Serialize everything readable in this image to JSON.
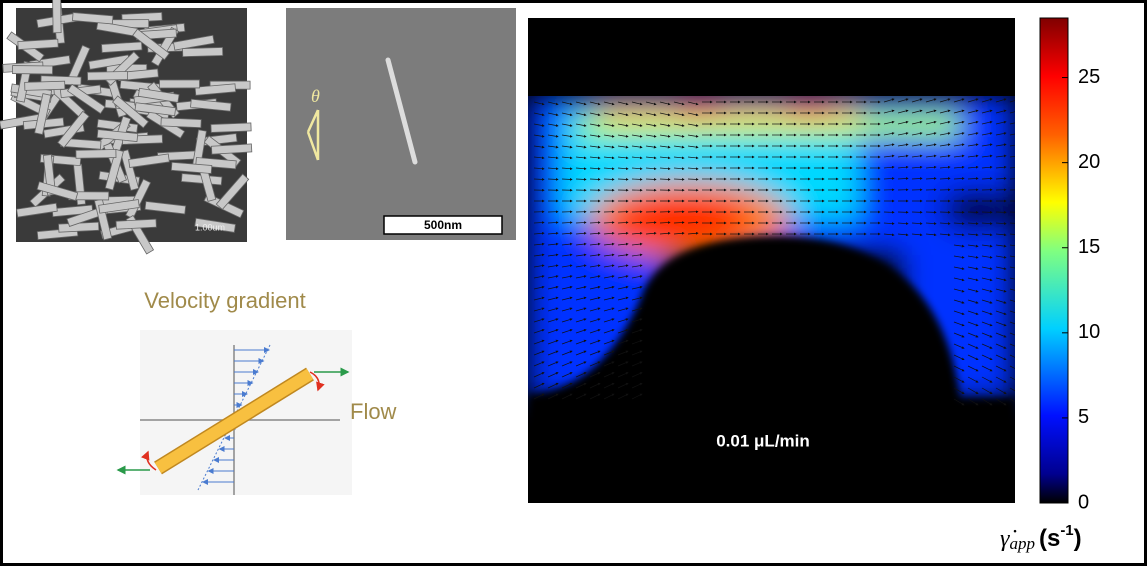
{
  "sem_images": {
    "scale_label_1": "1.00um",
    "scale_label_2": "500nm",
    "angle_label": "θ"
  },
  "diagram": {
    "title": "Velocity gradient",
    "flow_label": "Flow"
  },
  "heatmap": {
    "annotation": "0.01 μL/min",
    "colorbar": {
      "ylim": [
        0,
        28.5
      ],
      "yticks": [
        0,
        5,
        10,
        15,
        20,
        25
      ],
      "label": {
        "symbol": "γ̇",
        "subscript": "app",
        "unit_open": "(s",
        "exponent": "-1",
        "unit_close": ")"
      }
    }
  }
}
